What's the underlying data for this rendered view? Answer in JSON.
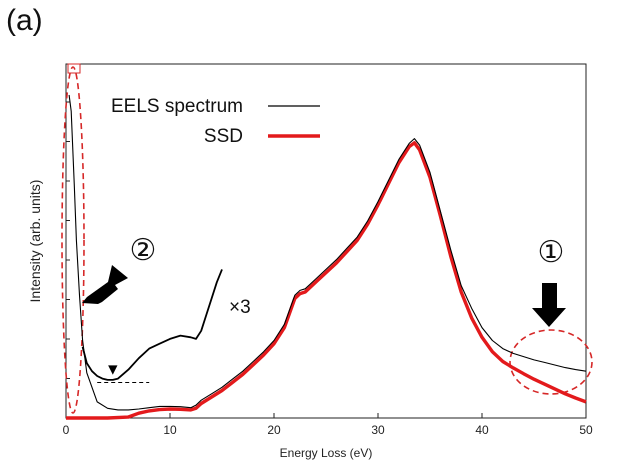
{
  "panel_label": "(a)",
  "colors": {
    "eels": "#000000",
    "ssd": "#e31a1c",
    "annotation": "#d62828",
    "axis": "#222222",
    "arrow": "#000000"
  },
  "chart_data": {
    "type": "line",
    "title": "",
    "xlabel": "Energy Loss (eV)",
    "ylabel": "Intensity (arb. units)",
    "xlim": [
      0,
      50
    ],
    "ylim": [
      0,
      1
    ],
    "x_ticks": [
      0,
      10,
      20,
      30,
      40,
      50
    ],
    "y_tick_labels": false,
    "grid": false,
    "legend_placement": "top-center",
    "series": [
      {
        "name": "EELS spectrum",
        "x": [
          0.3,
          0.5,
          0.8,
          1.0,
          1.3,
          1.6,
          2.0,
          3.0,
          4.0,
          5.0,
          6.0,
          7.0,
          8.0,
          9.0,
          10.0,
          11.0,
          12.0,
          12.5,
          13.0,
          14.0,
          15.0,
          16.0,
          17.0,
          18.0,
          19.0,
          20.0,
          21.0,
          22.0,
          22.5,
          23.0,
          24.0,
          25.0,
          26.0,
          27.0,
          28.0,
          29.0,
          30.0,
          31.0,
          32.0,
          33.0,
          33.5,
          34.0,
          35.0,
          36.0,
          37.0,
          38.0,
          39.0,
          40.0,
          41.0,
          42.0,
          43.0,
          44.0,
          45.0,
          46.0,
          47.0,
          48.0,
          49.0,
          50.0
        ],
        "y": [
          1.0,
          0.95,
          0.72,
          0.55,
          0.38,
          0.24,
          0.14,
          0.05,
          0.03,
          0.025,
          0.025,
          0.028,
          0.032,
          0.036,
          0.036,
          0.035,
          0.032,
          0.04,
          0.055,
          0.075,
          0.095,
          0.12,
          0.145,
          0.175,
          0.205,
          0.24,
          0.29,
          0.38,
          0.395,
          0.4,
          0.43,
          0.46,
          0.49,
          0.525,
          0.56,
          0.61,
          0.67,
          0.735,
          0.8,
          0.85,
          0.865,
          0.845,
          0.76,
          0.64,
          0.52,
          0.41,
          0.34,
          0.28,
          0.24,
          0.215,
          0.2,
          0.19,
          0.18,
          0.172,
          0.164,
          0.156,
          0.15,
          0.145
        ]
      },
      {
        "name": "SSD",
        "x": [
          0.0,
          2.0,
          4.0,
          6.0,
          7.0,
          8.0,
          9.0,
          10.0,
          11.0,
          12.0,
          12.5,
          13.0,
          14.0,
          15.0,
          16.0,
          17.0,
          18.0,
          19.0,
          20.0,
          21.0,
          22.0,
          22.5,
          23.0,
          24.0,
          25.0,
          26.0,
          27.0,
          28.0,
          29.0,
          30.0,
          31.0,
          32.0,
          33.0,
          33.5,
          34.0,
          35.0,
          36.0,
          37.0,
          38.0,
          39.0,
          40.0,
          41.0,
          42.0,
          43.0,
          44.0,
          45.0,
          46.0,
          47.0,
          48.0,
          49.0,
          50.0
        ],
        "y": [
          0.0,
          0.0,
          0.0,
          0.003,
          0.015,
          0.022,
          0.026,
          0.028,
          0.027,
          0.025,
          0.03,
          0.045,
          0.065,
          0.085,
          0.11,
          0.135,
          0.165,
          0.195,
          0.23,
          0.28,
          0.37,
          0.385,
          0.39,
          0.42,
          0.45,
          0.48,
          0.515,
          0.55,
          0.6,
          0.66,
          0.725,
          0.79,
          0.84,
          0.852,
          0.83,
          0.745,
          0.625,
          0.5,
          0.39,
          0.31,
          0.25,
          0.205,
          0.175,
          0.155,
          0.137,
          0.12,
          0.105,
          0.09,
          0.075,
          0.062,
          0.05
        ]
      }
    ],
    "inset": {
      "label": "×3",
      "x": [
        1.6,
        2.0,
        2.5,
        3.0,
        3.5,
        4.0,
        4.5,
        5.0,
        6.0,
        7.0,
        8.0,
        9.0,
        10.0,
        11.0,
        12.0,
        12.5,
        13.0,
        13.5,
        14.0,
        14.5,
        15.0
      ],
      "y": [
        0.22,
        0.17,
        0.145,
        0.13,
        0.122,
        0.118,
        0.118,
        0.122,
        0.15,
        0.185,
        0.215,
        0.23,
        0.245,
        0.255,
        0.25,
        0.245,
        0.27,
        0.32,
        0.37,
        0.42,
        0.46
      ],
      "minimum_marker": "▼",
      "minimum_x": 4.5,
      "baseline_x": [
        3.0,
        8.0
      ],
      "baseline_y": 0.11
    },
    "annotations": [
      {
        "label": "①",
        "x": 46.5,
        "y": 0.55
      },
      {
        "label": "②",
        "x": 7.0,
        "y": 0.47
      }
    ]
  }
}
